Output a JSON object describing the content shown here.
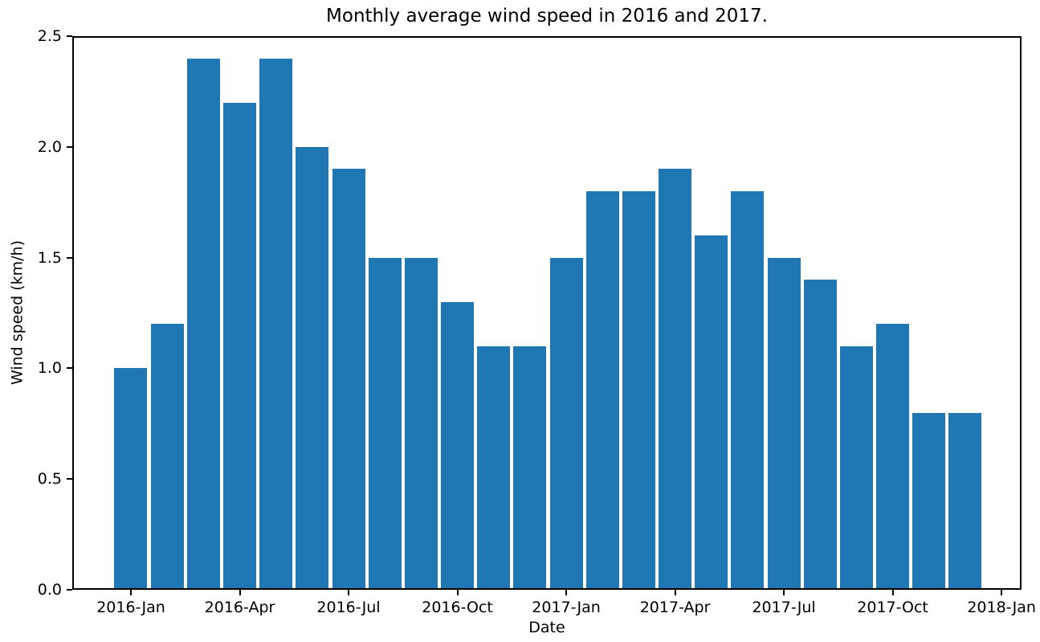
{
  "chart_data": {
    "type": "bar",
    "title": "Monthly average wind speed in 2016 and 2017.",
    "xlabel": "Date",
    "ylabel": "Wind speed (km/h)",
    "categories": [
      "2016-Jan",
      "2016-Feb",
      "2016-Mar",
      "2016-Apr",
      "2016-May",
      "2016-Jun",
      "2016-Jul",
      "2016-Aug",
      "2016-Sep",
      "2016-Oct",
      "2016-Nov",
      "2016-Dec",
      "2017-Jan",
      "2017-Feb",
      "2017-Mar",
      "2017-Apr",
      "2017-May",
      "2017-Jun",
      "2017-Jul",
      "2017-Aug",
      "2017-Sep",
      "2017-Oct",
      "2017-Nov",
      "2017-Dec"
    ],
    "values": [
      1.0,
      1.2,
      2.4,
      2.2,
      2.4,
      2.0,
      1.9,
      1.5,
      1.5,
      1.3,
      1.1,
      1.1,
      1.5,
      1.8,
      1.8,
      1.9,
      1.6,
      1.8,
      1.5,
      1.4,
      1.1,
      1.2,
      0.8,
      0.8
    ],
    "x_tick_labels": [
      "2016-Jan",
      "2016-Apr",
      "2016-Jul",
      "2016-Oct",
      "2017-Jan",
      "2017-Apr",
      "2017-Jul",
      "2017-Oct",
      "2018-Jan"
    ],
    "x_tick_month_indices": [
      0,
      3,
      6,
      9,
      12,
      15,
      18,
      21,
      24
    ],
    "y_tick_labels": [
      "0.0",
      "0.5",
      "1.0",
      "1.5",
      "2.0",
      "2.5"
    ],
    "y_tick_values": [
      0.0,
      0.5,
      1.0,
      1.5,
      2.0,
      2.5
    ],
    "ylim": [
      0.0,
      2.5
    ],
    "xlim_months": [
      -1.616,
      24.551
    ],
    "bar_color": "#1f77b4",
    "grid": false,
    "legend": "none"
  }
}
